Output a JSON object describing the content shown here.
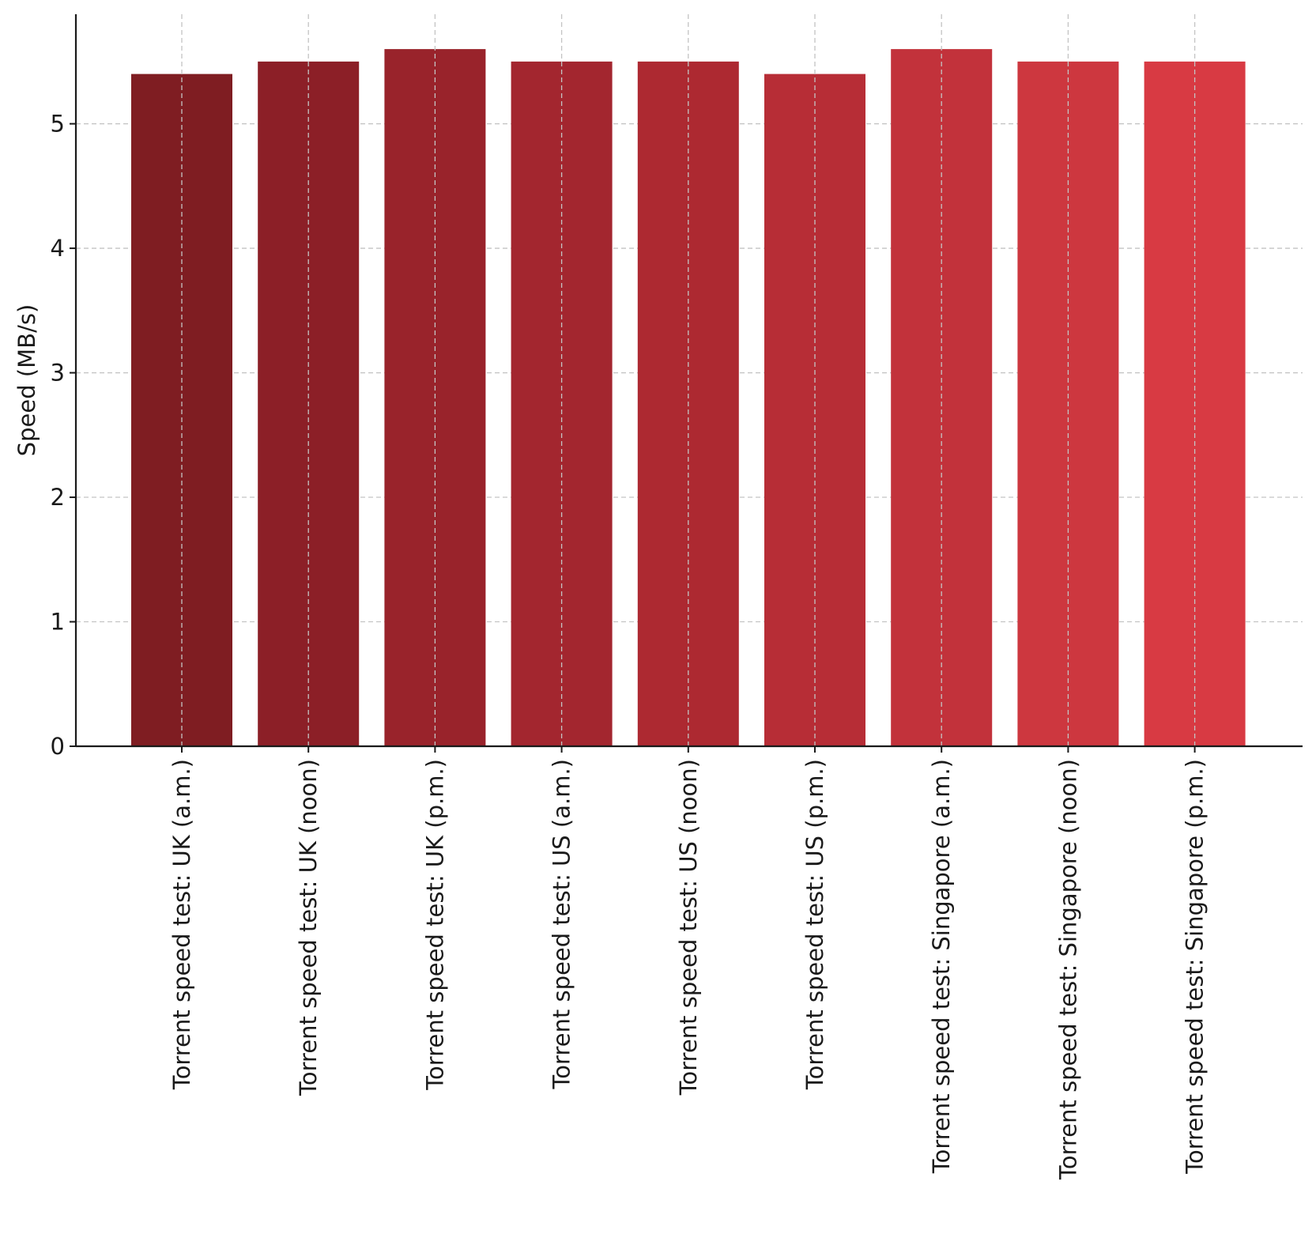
{
  "chart_data": {
    "type": "bar",
    "title": "",
    "xlabel": "",
    "ylabel": "Speed (MB/s)",
    "categories": [
      "Torrent speed test: UK (a.m.)",
      "Torrent speed test: UK (noon)",
      "Torrent speed test: UK (p.m.)",
      "Torrent speed test: US (a.m.)",
      "Torrent speed test: US (noon)",
      "Torrent speed test: US (p.m.)",
      "Torrent speed test: Singapore (a.m.)",
      "Torrent speed test: Singapore (noon)",
      "Torrent speed test: Singapore (p.m.)"
    ],
    "values": [
      5.4,
      5.5,
      5.6,
      5.5,
      5.5,
      5.4,
      5.6,
      5.5,
      5.5
    ],
    "colors": [
      "#7f1d22",
      "#8c1f27",
      "#99232b",
      "#a3262f",
      "#ad2931",
      "#b72d36",
      "#c2323b",
      "#cd373f",
      "#d83a43"
    ],
    "yticks": [
      0,
      1,
      2,
      3,
      4,
      5
    ],
    "ylim": [
      0,
      5.88
    ],
    "grid": true
  }
}
